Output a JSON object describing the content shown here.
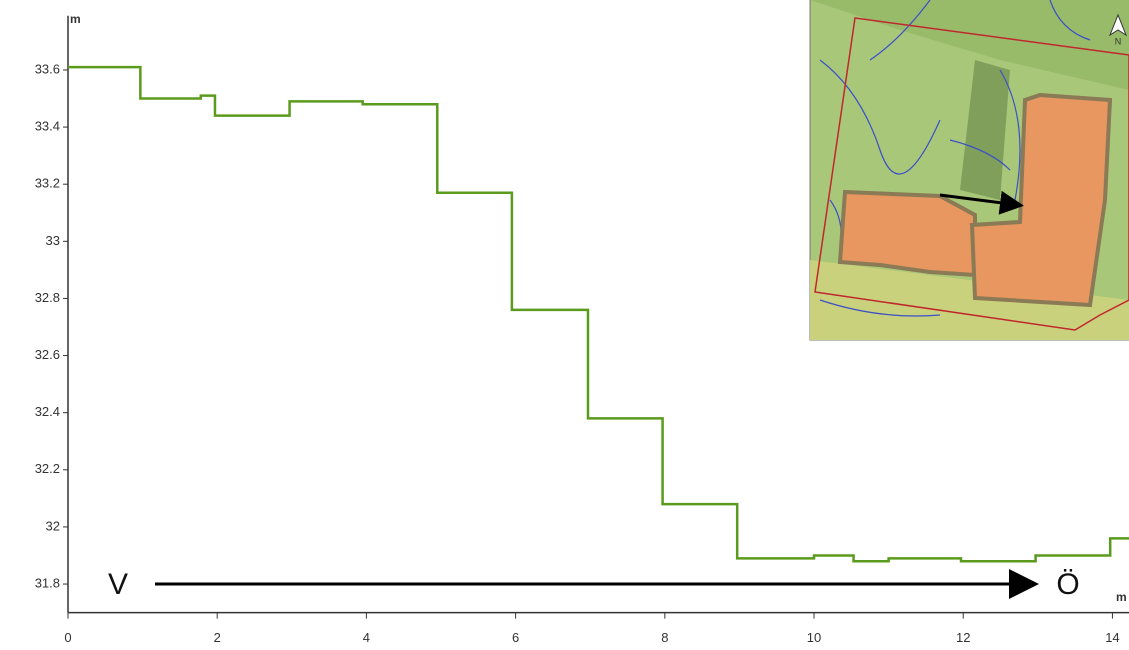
{
  "chart_data": {
    "type": "line",
    "y_label": "m",
    "x_label": "m",
    "start_label": "V",
    "end_label": "Ö",
    "inset_north_label": "N",
    "color": "#5a9a1c",
    "x": [
      0,
      0.97,
      0.97,
      1.78,
      1.78,
      1.97,
      1.97,
      2.97,
      2.97,
      3.95,
      3.95,
      4.95,
      4.95,
      5.95,
      5.95,
      6.97,
      6.97,
      7.97,
      7.97,
      8.97,
      8.97,
      10.0,
      10.0,
      10.53,
      10.53,
      11.0,
      11.0,
      11.97,
      11.97,
      12.97,
      12.97,
      13.97,
      13.97,
      14.23
    ],
    "values": [
      33.61,
      33.61,
      33.5,
      33.5,
      33.51,
      33.51,
      33.44,
      33.44,
      33.49,
      33.49,
      33.48,
      33.48,
      33.17,
      33.17,
      32.76,
      32.76,
      32.38,
      32.38,
      32.08,
      32.08,
      31.89,
      31.89,
      31.9,
      31.9,
      31.88,
      31.88,
      31.89,
      31.89,
      31.88,
      31.88,
      31.9,
      31.9,
      31.96,
      31.96
    ],
    "xlim": [
      0,
      14.23
    ],
    "ylim": [
      31.7,
      33.79
    ],
    "xticks": [
      0,
      2,
      4,
      6,
      8,
      10,
      12,
      14
    ],
    "yticks": [
      31.8,
      32,
      32.2,
      32.4,
      32.6,
      32.8,
      33,
      33.2,
      33.4,
      33.6
    ],
    "grid": false
  }
}
